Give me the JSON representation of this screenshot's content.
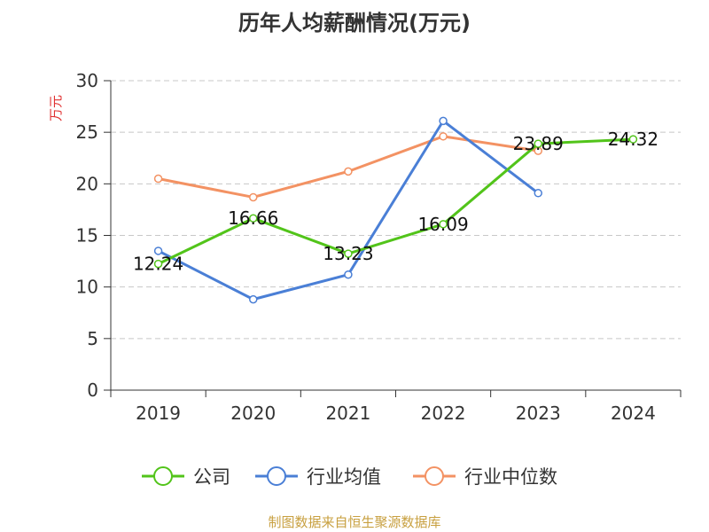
{
  "chart_data": {
    "type": "line",
    "title": "历年人均薪酬情况(万元)",
    "ylabel": "万元",
    "xlabel": "",
    "categories": [
      "2019",
      "2020",
      "2021",
      "2022",
      "2023",
      "2024"
    ],
    "ylim": [
      0,
      30
    ],
    "yticks": [
      "0",
      "5",
      "10",
      "15",
      "20",
      "25",
      "30"
    ],
    "grid": true,
    "legend_position": "bottom",
    "series": [
      {
        "name": "公司",
        "color": "#52c41a",
        "values": [
          12.24,
          16.66,
          13.23,
          16.09,
          23.89,
          24.32
        ],
        "labels": [
          "12.24",
          "16.66",
          "13.23",
          "16.09",
          "23.89",
          "24.32"
        ]
      },
      {
        "name": "行业均值",
        "color": "#4a7fd6",
        "values": [
          13.5,
          8.8,
          11.2,
          26.1,
          19.1,
          null
        ]
      },
      {
        "name": "行业中位数",
        "color": "#f39263",
        "values": [
          20.5,
          18.7,
          21.2,
          24.6,
          23.2,
          null
        ]
      }
    ]
  },
  "source": "制图数据来自恒生聚源数据库"
}
